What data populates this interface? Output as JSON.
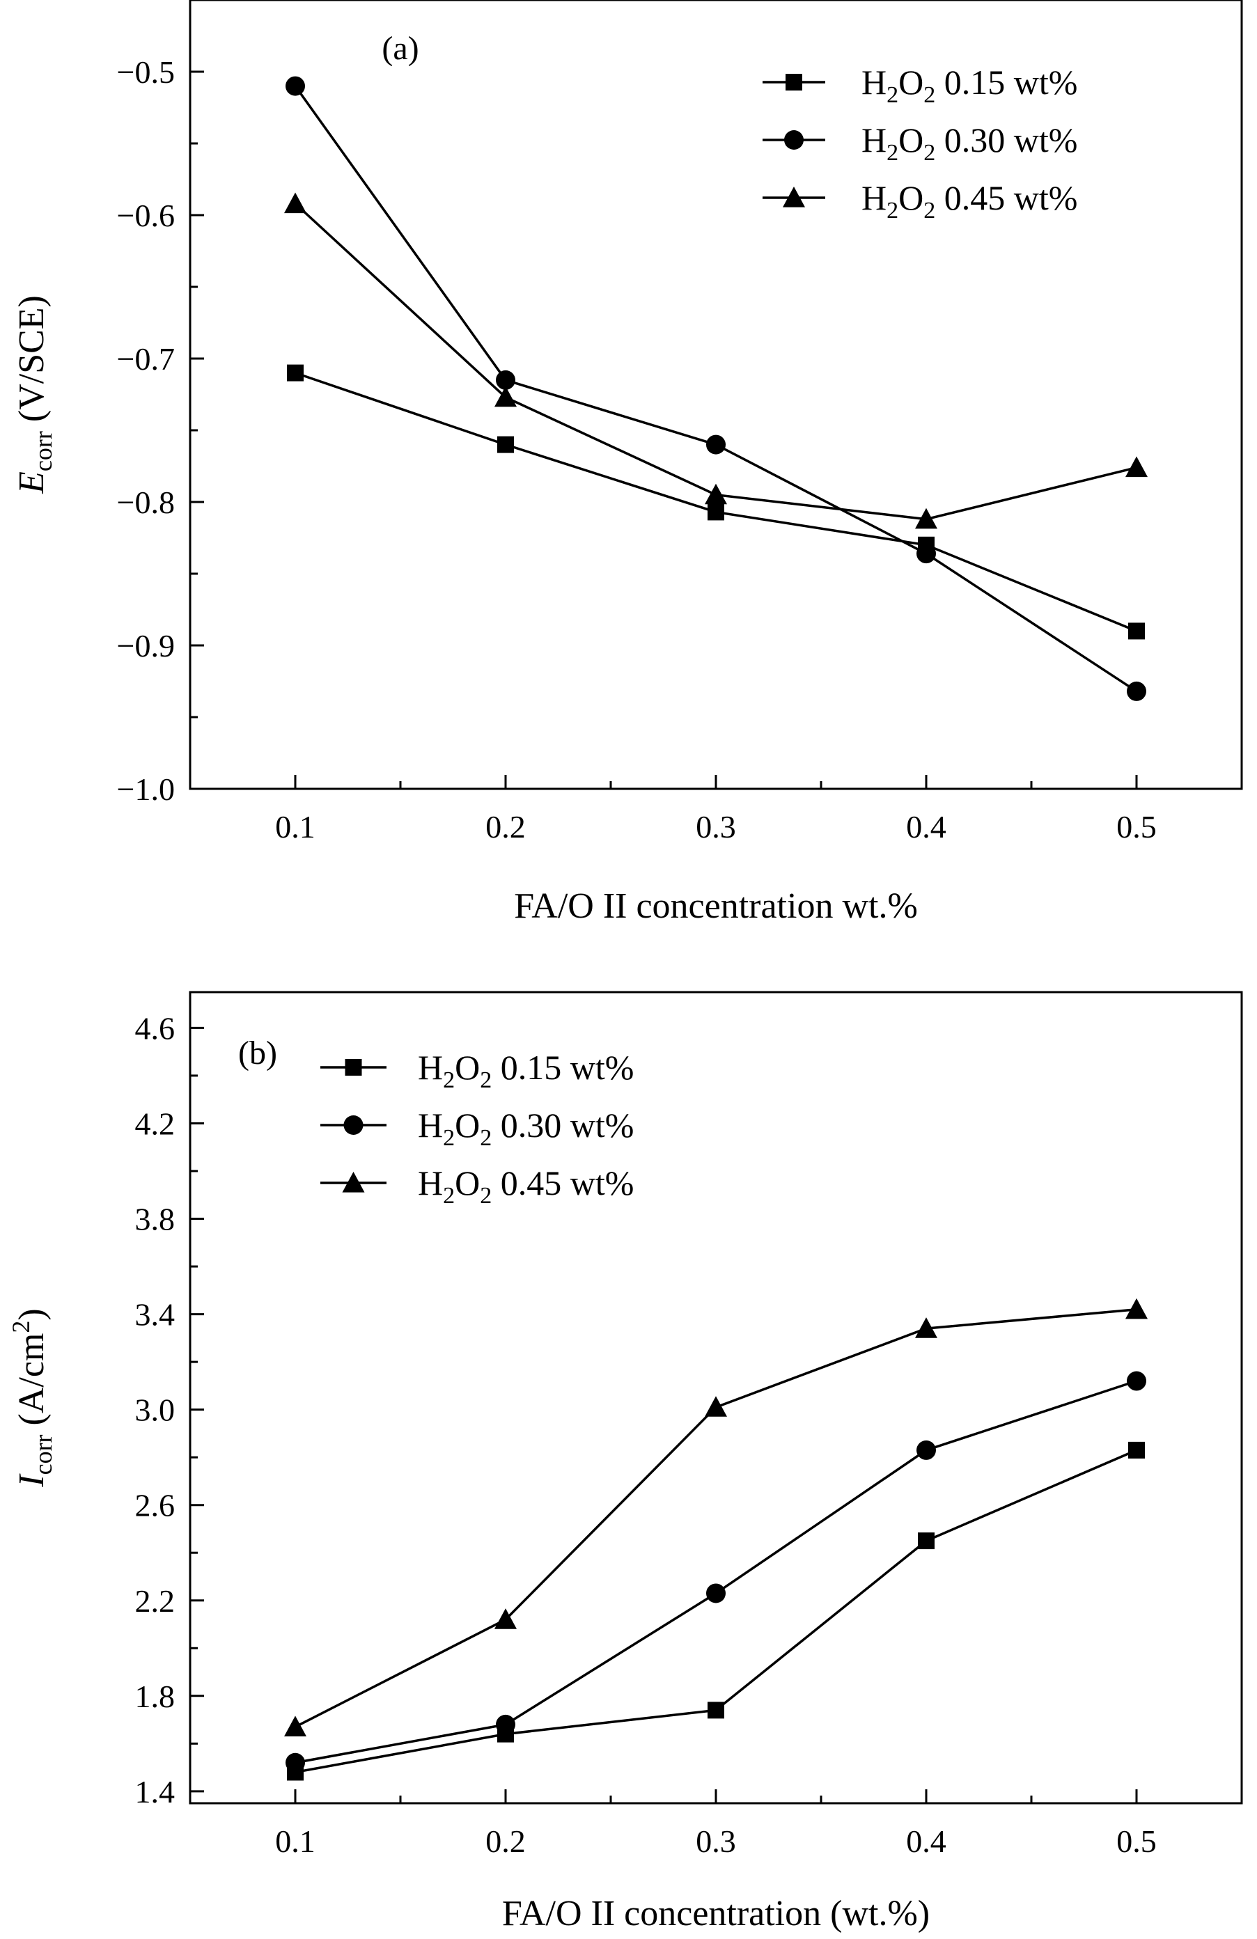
{
  "figure": {
    "panel_labels": [
      "(a)",
      "(b)"
    ]
  },
  "chart_data": [
    {
      "type": "line",
      "panel_label": "(a)",
      "xlabel": "FA/O II concentration wt.%",
      "ylabel": {
        "italic": "E",
        "subscript": "corr",
        "rest": " (V/SCE)"
      },
      "x": [
        0.1,
        0.2,
        0.3,
        0.4,
        0.5
      ],
      "x_ticks": [
        "0.1",
        "0.2",
        "0.3",
        "0.4",
        "0.5"
      ],
      "xlim": [
        0.05,
        0.55
      ],
      "ylim": [
        -1.0,
        -0.45
      ],
      "y_ticks": [
        -1.0,
        -0.9,
        -0.8,
        -0.7,
        -0.6,
        -0.5
      ],
      "y_tick_labels": [
        "−1.0",
        "−0.9",
        "−0.8",
        "−0.7",
        "−0.6",
        "−0.5"
      ],
      "legend_position": "top-right",
      "grid": false,
      "series": [
        {
          "name": {
            "base": "H",
            "sub1": "2",
            "mid": "O",
            "sub2": "2",
            "rest": " 0.15 wt%"
          },
          "marker": "square",
          "values": [
            -0.71,
            -0.76,
            -0.807,
            -0.83,
            -0.89
          ]
        },
        {
          "name": {
            "base": "H",
            "sub1": "2",
            "mid": "O",
            "sub2": "2",
            "rest": " 0.30 wt%"
          },
          "marker": "circle",
          "values": [
            -0.51,
            -0.715,
            -0.76,
            -0.836,
            -0.932
          ]
        },
        {
          "name": {
            "base": "H",
            "sub1": "2",
            "mid": "O",
            "sub2": "2",
            "rest": " 0.45 wt%"
          },
          "marker": "triangle",
          "values": [
            -0.592,
            -0.727,
            -0.795,
            -0.812,
            -0.776
          ]
        }
      ]
    },
    {
      "type": "line",
      "panel_label": "(b)",
      "xlabel": "FA/O II concentration (wt.%)",
      "ylabel": {
        "italic": "I",
        "subscript": "corr",
        "rest": " (A/cm",
        "superscript": "2",
        "close": ")"
      },
      "x": [
        0.1,
        0.2,
        0.3,
        0.4,
        0.5
      ],
      "x_ticks": [
        "0.1",
        "0.2",
        "0.3",
        "0.4",
        "0.5"
      ],
      "xlim": [
        0.05,
        0.55
      ],
      "ylim": [
        1.35,
        4.75
      ],
      "y_ticks": [
        1.4,
        1.8,
        2.2,
        2.6,
        3.0,
        3.4,
        3.8,
        4.2,
        4.6
      ],
      "y_tick_labels": [
        "1.4",
        "1.8",
        "2.2",
        "2.6",
        "3.0",
        "3.4",
        "3.8",
        "4.2",
        "4.6"
      ],
      "legend_position": "top-left",
      "grid": false,
      "series": [
        {
          "name": {
            "base": "H",
            "sub1": "2",
            "mid": "O",
            "sub2": "2",
            "rest": " 0.15 wt%"
          },
          "marker": "square",
          "values": [
            1.48,
            1.64,
            1.74,
            2.45,
            2.83
          ]
        },
        {
          "name": {
            "base": "H",
            "sub1": "2",
            "mid": "O",
            "sub2": "2",
            "rest": " 0.30 wt%"
          },
          "marker": "circle",
          "values": [
            1.52,
            1.68,
            2.23,
            2.83,
            3.12
          ]
        },
        {
          "name": {
            "base": "H",
            "sub1": "2",
            "mid": "O",
            "sub2": "2",
            "rest": " 0.45 wt%"
          },
          "marker": "triangle",
          "values": [
            1.67,
            2.12,
            3.01,
            3.34,
            3.42
          ]
        }
      ]
    }
  ]
}
